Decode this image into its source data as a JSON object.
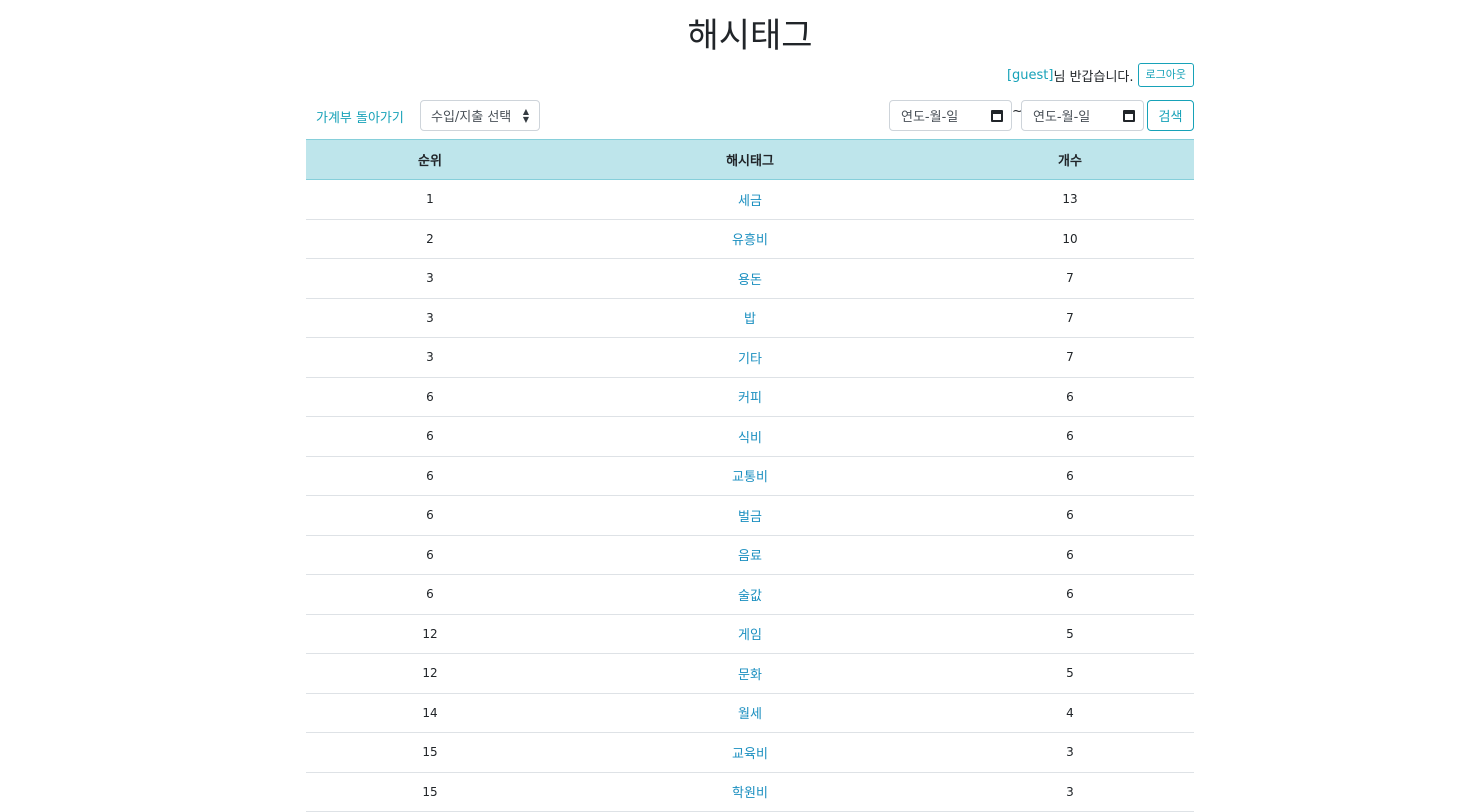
{
  "page": {
    "title": "해시태그"
  },
  "user": {
    "name": "[guest]",
    "greeting": "님 반갑습니다.",
    "logout_label": "로그아웃"
  },
  "toolbar": {
    "back_label": "가계부 돌아가기",
    "type_select": {
      "selected": "수입/지출 선택"
    },
    "date_from_placeholder": "연도-월-일",
    "date_separator": "~",
    "date_to_placeholder": "연도-월-일",
    "search_label": "검색"
  },
  "table": {
    "headers": [
      "순위",
      "해시태그",
      "개수"
    ],
    "rows": [
      {
        "rank": "1",
        "tag": "세금",
        "count": "13"
      },
      {
        "rank": "2",
        "tag": "유흥비",
        "count": "10"
      },
      {
        "rank": "3",
        "tag": "용돈",
        "count": "7"
      },
      {
        "rank": "3",
        "tag": "밥",
        "count": "7"
      },
      {
        "rank": "3",
        "tag": "기타",
        "count": "7"
      },
      {
        "rank": "6",
        "tag": "커피",
        "count": "6"
      },
      {
        "rank": "6",
        "tag": "식비",
        "count": "6"
      },
      {
        "rank": "6",
        "tag": "교통비",
        "count": "6"
      },
      {
        "rank": "6",
        "tag": "벌금",
        "count": "6"
      },
      {
        "rank": "6",
        "tag": "음료",
        "count": "6"
      },
      {
        "rank": "6",
        "tag": "술값",
        "count": "6"
      },
      {
        "rank": "12",
        "tag": "게임",
        "count": "5"
      },
      {
        "rank": "12",
        "tag": "문화",
        "count": "5"
      },
      {
        "rank": "14",
        "tag": "월세",
        "count": "4"
      },
      {
        "rank": "15",
        "tag": "교육비",
        "count": "3"
      },
      {
        "rank": "15",
        "tag": "학원비",
        "count": "3"
      }
    ]
  },
  "colors": {
    "accent": "#17a2b8",
    "link": "#1b8fc0",
    "header_bg": "#bee5eb"
  }
}
